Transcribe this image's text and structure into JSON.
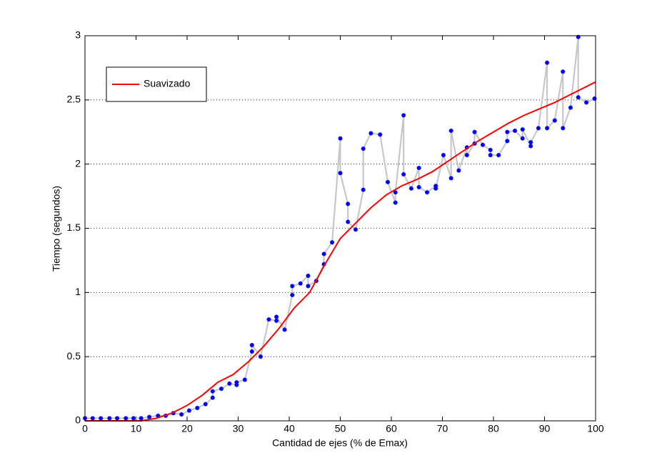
{
  "chart_data": {
    "type": "line",
    "xlabel": "Cantidad de ejes (% de Emax)",
    "ylabel": "Tiempo (segundos)",
    "xlim": [
      0,
      100
    ],
    "xticks": [
      0,
      10,
      20,
      30,
      40,
      50,
      60,
      70,
      80,
      90,
      100
    ],
    "ylim": [
      0,
      3
    ],
    "yticks": [
      0,
      0.5,
      1,
      1.5,
      2,
      2.5,
      3
    ],
    "grid": "y",
    "legend": "upper left",
    "series": [
      {
        "color": "#c8c8c8",
        "marker_color": "#0000ff",
        "x": [
          0,
          1.5,
          3.1,
          4.8,
          6.3,
          8,
          9.5,
          11,
          12.6,
          14.3,
          15.8,
          17.3,
          18.9,
          20.4,
          22,
          23.6,
          25,
          25,
          26.7,
          28.3,
          29.7,
          29.7,
          31.3,
          32.7,
          32.7,
          34.4,
          36,
          37.5,
          37.5,
          39.1,
          40.6,
          40.6,
          42.2,
          43.7,
          43.7,
          45.3,
          46.8,
          46.8,
          48.4,
          50,
          50,
          51.5,
          51.5,
          53,
          54.5,
          54.5,
          56,
          57.8,
          59.3,
          60.8,
          60.8,
          62.4,
          62.4,
          63.9,
          65.4,
          65.4,
          67,
          68.7,
          68.7,
          70.2,
          71.7,
          71.7,
          73.2,
          74.8,
          74.8,
          76.3,
          76.3,
          77.9,
          79.4,
          79.4,
          81,
          82.7,
          82.7,
          84.2,
          85.7,
          85.7,
          87.3,
          87.3,
          88.8,
          90.5,
          90.5,
          92,
          93.6,
          93.6,
          95.1,
          96.6,
          96.6,
          98.2,
          99.8
        ],
        "values": [
          0.02,
          0.02,
          0.02,
          0.02,
          0.02,
          0.02,
          0.02,
          0.02,
          0.03,
          0.04,
          0.04,
          0.06,
          0.05,
          0.08,
          0.1,
          0.13,
          0.18,
          0.23,
          0.25,
          0.29,
          0.28,
          0.3,
          0.32,
          0.54,
          0.59,
          0.5,
          0.79,
          0.78,
          0.81,
          0.71,
          0.98,
          1.05,
          1.07,
          1.13,
          1.05,
          1.09,
          1.22,
          1.3,
          1.39,
          2.2,
          1.93,
          1.69,
          1.55,
          1.49,
          1.8,
          2.12,
          2.24,
          2.23,
          1.86,
          1.7,
          1.78,
          2.38,
          1.92,
          1.81,
          1.97,
          1.82,
          1.78,
          1.83,
          1.81,
          2.07,
          1.89,
          2.26,
          1.95,
          2.13,
          2.07,
          2.16,
          2.25,
          2.15,
          2.11,
          2.07,
          2.07,
          2.18,
          2.25,
          2.26,
          2.2,
          2.27,
          2.14,
          2.17,
          2.28,
          2.79,
          2.28,
          2.34,
          2.72,
          2.28,
          2.44,
          2.99,
          2.52,
          2.48,
          2.51
        ]
      },
      {
        "name": "Suavizado",
        "color": "#ff0000",
        "x": [
          0,
          11,
          14,
          17,
          20,
          23,
          26,
          29,
          32,
          35,
          38,
          41,
          44,
          47,
          50,
          53,
          56,
          59,
          62,
          65,
          68,
          71,
          74,
          77,
          80,
          83,
          86,
          89,
          92,
          95,
          98,
          100
        ],
        "values": [
          0,
          0,
          0.02,
          0.06,
          0.12,
          0.2,
          0.3,
          0.36,
          0.46,
          0.58,
          0.72,
          0.88,
          1.0,
          1.22,
          1.42,
          1.54,
          1.66,
          1.76,
          1.83,
          1.88,
          1.94,
          2.02,
          2.1,
          2.18,
          2.25,
          2.32,
          2.38,
          2.43,
          2.48,
          2.54,
          2.6,
          2.64
        ]
      }
    ]
  }
}
